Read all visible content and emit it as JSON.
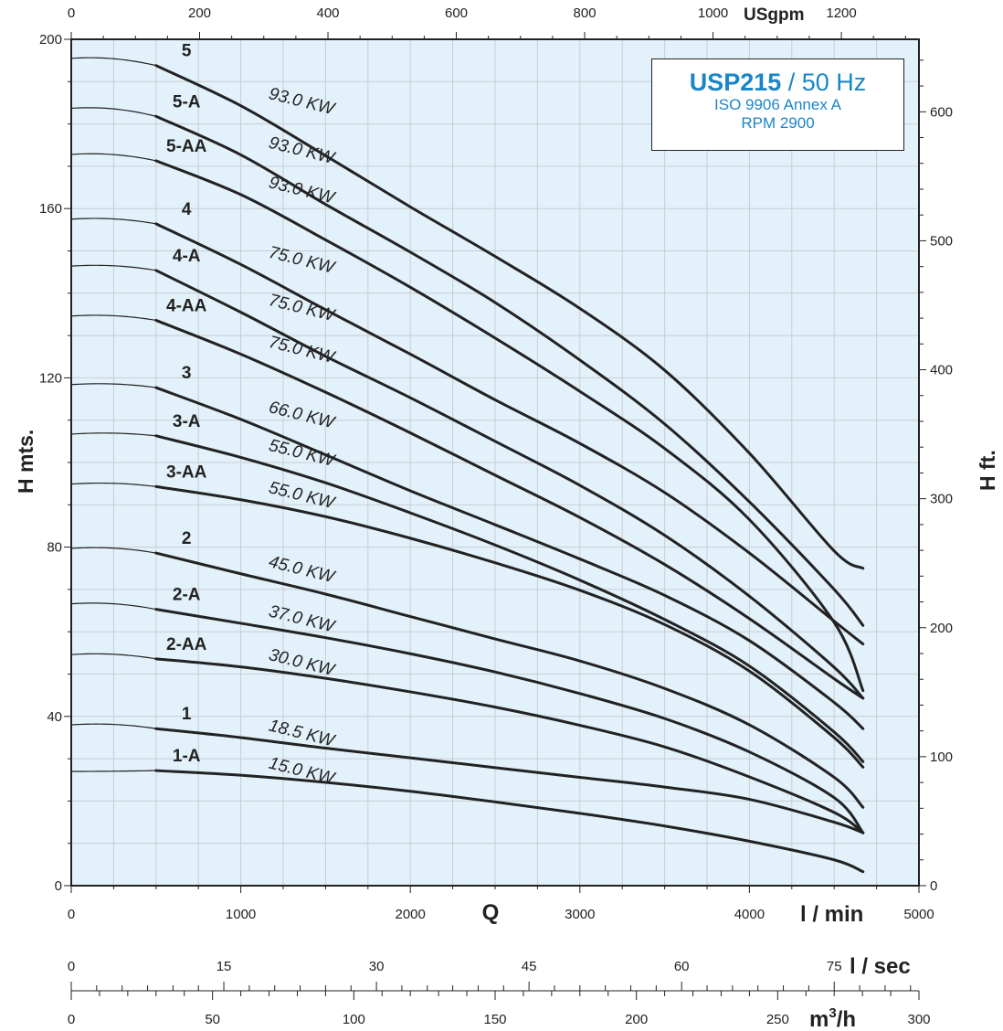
{
  "title": {
    "model": "USP215",
    "frequency": " / 50 Hz",
    "standard": "ISO 9906 Annex A",
    "rpm": "RPM 2900"
  },
  "axes": {
    "left_label": "H mts.",
    "right_label": "H ft.",
    "bottom_q": "Q",
    "bottom_unit": "l / min",
    "top_unit": "USgpm",
    "lsec_unit": "l / sec",
    "m3h_unit": "m",
    "m3h_sup": "3",
    "m3h_tail": "/h"
  },
  "colors": {
    "plot_bg": "#e3f1fb",
    "grid": "#c8cdd2",
    "curve": "#222222",
    "accent": "#1a86c7"
  },
  "chart_data": {
    "type": "line",
    "x_unit": "l/min",
    "y_unit": "m",
    "xlim": [
      0,
      5000
    ],
    "ylim": [
      0,
      200
    ],
    "x_ticks": [
      "0",
      "1000",
      "2000",
      "3000",
      "4000",
      "5000"
    ],
    "y_ticks": [
      "0",
      "40",
      "80",
      "120",
      "160",
      "200"
    ],
    "right_axis": {
      "unit": "ft",
      "ticks": [
        "0",
        "100",
        "200",
        "300",
        "400",
        "500",
        "600"
      ],
      "max": 656.2
    },
    "top_axis": {
      "unit": "USgpm",
      "ticks": [
        "0",
        "200",
        "400",
        "600",
        "800",
        "1000",
        "1200"
      ],
      "max": 1320.9
    },
    "lsec_axis": {
      "ticks": [
        "0",
        "15",
        "30",
        "45",
        "60",
        "75"
      ],
      "max": 83.33
    },
    "m3h_axis": {
      "ticks": [
        "0",
        "50",
        "100",
        "150",
        "200",
        "250",
        "300"
      ],
      "max": 300
    },
    "grid": true,
    "series": [
      {
        "name": "5",
        "power": "93.0 KW",
        "shutoff": 195.5,
        "x": [
          500,
          1000,
          1500,
          2000,
          2500,
          3000,
          3500,
          4000,
          4500,
          4670
        ],
        "y": [
          193.8,
          184.3,
          172.5,
          160.4,
          148.7,
          136.4,
          121.8,
          102.2,
          79.1,
          75.0
        ]
      },
      {
        "name": "5-A",
        "power": "93.0 KW",
        "shutoff": 183.7,
        "x": [
          500,
          1000,
          1500,
          2000,
          2500,
          3000,
          3500,
          4000,
          4500,
          4670
        ],
        "y": [
          181.8,
          172.7,
          161.0,
          149.7,
          137.8,
          124.2,
          109.1,
          90.7,
          70.0,
          61.5
        ]
      },
      {
        "name": "5-AA",
        "power": "93.0 KW",
        "shutoff": 172.8,
        "x": [
          500,
          1000,
          1500,
          2000,
          2500,
          3000,
          3500,
          4000,
          4500,
          4670
        ],
        "y": [
          171.3,
          163.3,
          152.6,
          141.4,
          129.4,
          116.8,
          103.3,
          86.5,
          62.2,
          46.1
        ]
      },
      {
        "name": "4",
        "power": "75.0 KW",
        "shutoff": 157.5,
        "x": [
          500,
          1000,
          1500,
          2000,
          2500,
          3000,
          3500,
          4000,
          4500,
          4670
        ],
        "y": [
          156.4,
          146.8,
          136.1,
          125.6,
          114.8,
          104.5,
          92.9,
          78.6,
          62.5,
          57.1
        ]
      },
      {
        "name": "4-A",
        "power": "75.0 KW",
        "shutoff": 146.4,
        "x": [
          500,
          1000,
          1500,
          2000,
          2500,
          3000,
          3500,
          4000,
          4500,
          4670
        ],
        "y": [
          145.4,
          135.5,
          125.1,
          115.3,
          105.0,
          94.6,
          82.8,
          68.4,
          51.6,
          44.3
        ]
      },
      {
        "name": "4-AA",
        "power": "75.0 KW",
        "shutoff": 134.6,
        "x": [
          500,
          1000,
          1500,
          2000,
          2500,
          3000,
          3500,
          4000,
          4500,
          4670
        ],
        "y": [
          133.6,
          125.6,
          116.6,
          107.0,
          97.0,
          87.0,
          75.9,
          63.1,
          48.9,
          44.3
        ]
      },
      {
        "name": "3",
        "power": "66.0 KW",
        "shutoff": 118.4,
        "x": [
          500,
          1000,
          1500,
          2000,
          2500,
          3000,
          3500,
          4000,
          4500,
          4670
        ],
        "y": [
          117.7,
          110.2,
          101.8,
          93.3,
          85.3,
          77.2,
          68.6,
          57.9,
          43.3,
          37.1
        ]
      },
      {
        "name": "3-A",
        "power": "55.0 KW",
        "shutoff": 106.7,
        "x": [
          500,
          1000,
          1500,
          2000,
          2500,
          3000,
          3500,
          4000,
          4500,
          4670
        ],
        "y": [
          106.3,
          101.2,
          95.2,
          88.1,
          80.5,
          72.2,
          62.9,
          51.9,
          36.3,
          29.3
        ]
      },
      {
        "name": "3-AA",
        "power": "55.0 KW",
        "shutoff": 94.9,
        "x": [
          500,
          1000,
          1500,
          2000,
          2500,
          3000,
          3500,
          4000,
          4500,
          4670
        ],
        "y": [
          94.3,
          91.2,
          87.2,
          82.1,
          76.3,
          69.8,
          61.7,
          50.7,
          35.0,
          28.0
        ]
      },
      {
        "name": "2",
        "power": "45.0 KW",
        "shutoff": 79.7,
        "x": [
          500,
          1000,
          1500,
          2000,
          2500,
          3000,
          3500,
          4000,
          4500,
          4670
        ],
        "y": [
          78.6,
          73.7,
          68.9,
          63.6,
          58.3,
          53.1,
          46.6,
          38.0,
          25.6,
          18.5
        ]
      },
      {
        "name": "2-A",
        "power": "37.0 KW",
        "shutoff": 66.6,
        "x": [
          500,
          1000,
          1500,
          2000,
          2500,
          3000,
          3500,
          4000,
          4500,
          4670
        ],
        "y": [
          65.3,
          62.0,
          58.6,
          54.8,
          50.5,
          45.4,
          39.5,
          31.6,
          20.8,
          12.5
        ]
      },
      {
        "name": "2-AA",
        "power": "30.0 KW",
        "shutoff": 54.6,
        "x": [
          500,
          1000,
          1500,
          2000,
          2500,
          3000,
          3500,
          4000,
          4500,
          4670
        ],
        "y": [
          53.6,
          51.7,
          49.0,
          45.8,
          42.2,
          37.9,
          32.8,
          25.7,
          17.3,
          12.5
        ]
      },
      {
        "name": "1",
        "power": "18.5 KW",
        "shutoff": 38.0,
        "x": [
          500,
          1000,
          1500,
          2000,
          2500,
          3000,
          3500,
          4000,
          4500,
          4670
        ],
        "y": [
          37.1,
          35.0,
          32.5,
          30.2,
          27.9,
          25.6,
          23.3,
          20.4,
          15.0,
          12.5
        ]
      },
      {
        "name": "1-A",
        "power": "15.0 KW",
        "shutoff": 27.0,
        "x": [
          500,
          1000,
          1500,
          2000,
          2500,
          3000,
          3500,
          4000,
          4500,
          4670
        ],
        "y": [
          27.2,
          26.1,
          24.4,
          22.3,
          19.8,
          17.1,
          14.1,
          10.5,
          6.1,
          3.3
        ]
      }
    ]
  }
}
